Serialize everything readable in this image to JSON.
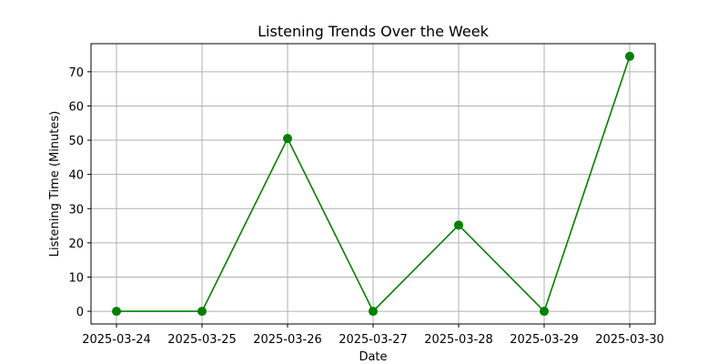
{
  "chart_data": {
    "type": "line",
    "title": "Listening Trends Over the Week",
    "xlabel": "Date",
    "ylabel": "Listening Time (Minutes)",
    "x": [
      "2025-03-24",
      "2025-03-25",
      "2025-03-26",
      "2025-03-27",
      "2025-03-28",
      "2025-03-29",
      "2025-03-30"
    ],
    "series": [
      {
        "values": [
          0,
          0,
          50.5,
          0,
          25.2,
          0,
          74.5
        ],
        "color": "#008000",
        "marker": "circle"
      }
    ],
    "yticks": [
      0,
      10,
      20,
      30,
      40,
      50,
      60,
      70
    ],
    "ylim": [
      -3.7,
      78.2
    ],
    "grid": true,
    "legend": "none"
  }
}
